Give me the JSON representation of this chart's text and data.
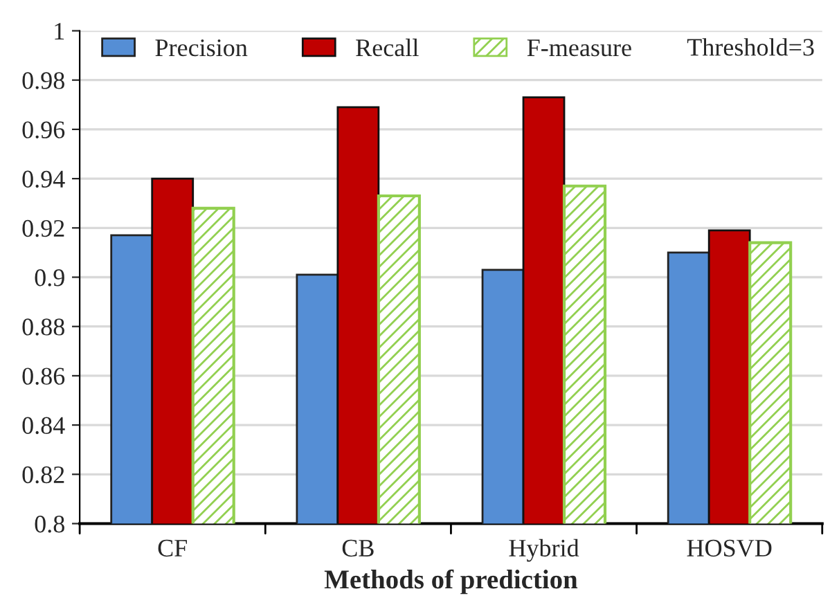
{
  "chart_data": {
    "type": "bar",
    "xlabel": "Methods of prediction",
    "categories": [
      "CF",
      "CB",
      "Hybrid",
      "HOSVD"
    ],
    "series": [
      {
        "name": "Precision",
        "color": "#558ed5",
        "values": [
          0.917,
          0.901,
          0.903,
          0.91
        ]
      },
      {
        "name": "Recall",
        "color": "#c00000",
        "values": [
          0.94,
          0.969,
          0.973,
          0.919
        ]
      },
      {
        "name": "F-measure",
        "color": "#92d050",
        "values": [
          0.928,
          0.933,
          0.937,
          0.914
        ]
      }
    ],
    "ylim": [
      0.8,
      1
    ],
    "yticks": [
      0.8,
      0.82,
      0.84,
      0.86,
      0.88,
      0.9,
      0.92,
      0.94,
      0.96,
      0.98,
      1
    ],
    "grid": "y",
    "legend": "top",
    "annotations": [
      "Threshold=3"
    ]
  }
}
